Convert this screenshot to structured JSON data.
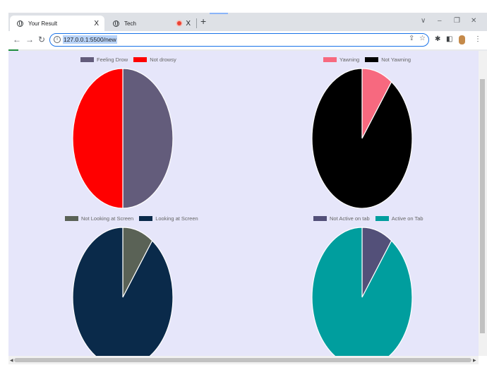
{
  "browser": {
    "tabs": [
      {
        "title": "Your Result",
        "close": "X",
        "active": true
      },
      {
        "title": "Tech",
        "close": "X",
        "active": false
      }
    ],
    "new_tab": "+",
    "url": "127.0.0.1:5500/new"
  },
  "colors": {
    "feeling_drowsy": "#635c7b",
    "not_drowsy": "#ff0000",
    "yawning": "#f7697f",
    "not_yawning": "#000000",
    "not_looking": "#5a6256",
    "looking": "#0a2a4a",
    "not_active": "#535079",
    "active": "#009e9e"
  },
  "chart_data": [
    {
      "type": "pie",
      "legend": [
        "Feeling Drow",
        "Not drowsy"
      ],
      "values": [
        50,
        50
      ],
      "colors": [
        "#635c7b",
        "#ff0000"
      ],
      "legend_placement": "top"
    },
    {
      "type": "pie",
      "legend": [
        "Yawning",
        "Not Yawning"
      ],
      "values": [
        10,
        90
      ],
      "colors": [
        "#f7697f",
        "#000000"
      ],
      "legend_placement": "top"
    },
    {
      "type": "pie",
      "legend": [
        "Not Looking at Screen",
        "Looking at Screen"
      ],
      "values": [
        10,
        90
      ],
      "colors": [
        "#5a6256",
        "#0a2a4a"
      ],
      "legend_placement": "top"
    },
    {
      "type": "pie",
      "legend": [
        "Not Active on tab",
        "Active on Tab"
      ],
      "values": [
        10,
        90
      ],
      "colors": [
        "#535079",
        "#009e9e"
      ],
      "legend_placement": "top"
    }
  ]
}
